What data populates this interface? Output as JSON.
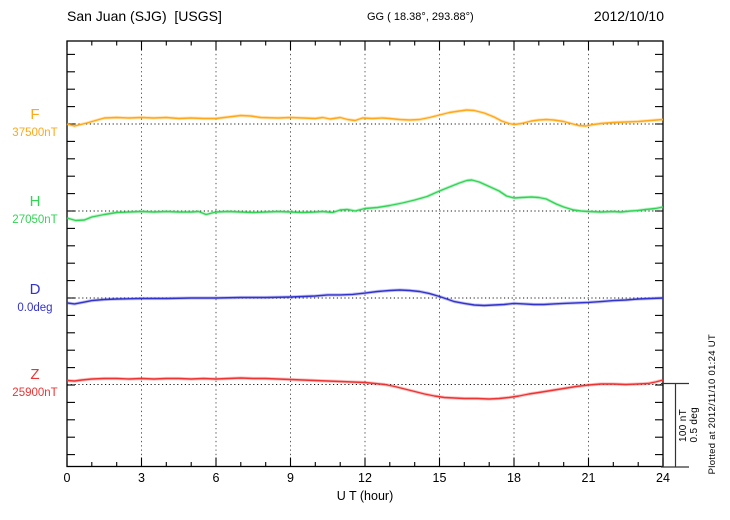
{
  "header": {
    "station": "San Juan (SJG)  [USGS]",
    "geographic": "GG ( 18.38°, 293.88°)",
    "date": "2012/10/10"
  },
  "xaxis": {
    "label": "U T (hour)",
    "tick_labels": [
      "0",
      "3",
      "6",
      "9",
      "12",
      "15",
      "18",
      "21",
      "24"
    ],
    "minor_tick_every_hours": 1,
    "major_tick_every_hours": 3
  },
  "scale_bar": {
    "nt_label": "100 nT",
    "deg_label": "0.5 deg"
  },
  "footnote": "Plotted at 2012/11/10 01:24 UT",
  "colors": {
    "axis": "#000000",
    "gridline": "#555555",
    "baseline_dots": "#1a1a1a",
    "background": "#ffffff"
  },
  "chart_data": {
    "type": "line",
    "title": "San Juan (SJG) [USGS] magnetogram, 2012/10/10",
    "xlabel": "U T (hour)",
    "xlim": [
      0,
      24
    ],
    "x_unit": "hour",
    "grid": "dotted vertical every 3 h, dotted horizontal baseline per trace",
    "legend_position": "left margin trace labels",
    "scale": {
      "nT_per_division": 100,
      "deg_per_division": 0.5
    },
    "series": [
      {
        "name": "F",
        "ref_label": "37500nT",
        "reference": 37500,
        "unit": "nT",
        "color": "#FFA819",
        "points": [
          [
            0,
            0
          ],
          [
            0.3,
            -2.4
          ],
          [
            0.8,
            1.2
          ],
          [
            1.5,
            7.1
          ],
          [
            2,
            7.6
          ],
          [
            2.5,
            7.1
          ],
          [
            3,
            7.6
          ],
          [
            3.5,
            7.1
          ],
          [
            4,
            7.6
          ],
          [
            4.5,
            6.5
          ],
          [
            5,
            7.1
          ],
          [
            5.5,
            6.5
          ],
          [
            6,
            6.5
          ],
          [
            6.5,
            8.2
          ],
          [
            7,
            10
          ],
          [
            7.4,
            9.4
          ],
          [
            7.8,
            7.6
          ],
          [
            8.5,
            7.1
          ],
          [
            9,
            7.6
          ],
          [
            9.5,
            7.1
          ],
          [
            10,
            6.5
          ],
          [
            10.3,
            7.6
          ],
          [
            10.6,
            5.9
          ],
          [
            11,
            7.6
          ],
          [
            11.3,
            5.3
          ],
          [
            11.6,
            4.1
          ],
          [
            11.9,
            7.1
          ],
          [
            12.3,
            6.5
          ],
          [
            12.7,
            7.1
          ],
          [
            13,
            6.5
          ],
          [
            13.4,
            5.3
          ],
          [
            13.8,
            4.7
          ],
          [
            14.2,
            5.3
          ],
          [
            14.6,
            7.6
          ],
          [
            15,
            10.6
          ],
          [
            15.4,
            13.5
          ],
          [
            15.8,
            15.3
          ],
          [
            16.1,
            16.5
          ],
          [
            16.4,
            15.9
          ],
          [
            16.8,
            12.9
          ],
          [
            17.2,
            8.2
          ],
          [
            17.5,
            3.5
          ],
          [
            17.8,
            0.6
          ],
          [
            18,
            -0.6
          ],
          [
            18.3,
            0.6
          ],
          [
            18.7,
            3.5
          ],
          [
            19,
            4.7
          ],
          [
            19.3,
            5.3
          ],
          [
            19.6,
            4.7
          ],
          [
            20,
            2.9
          ],
          [
            20.3,
            0.6
          ],
          [
            20.6,
            -1.8
          ],
          [
            20.9,
            -2.4
          ],
          [
            21.2,
            -0.6
          ],
          [
            21.5,
            0.6
          ],
          [
            22,
            1.8
          ],
          [
            22.5,
            2.4
          ],
          [
            23,
            2.9
          ],
          [
            23.5,
            4.1
          ],
          [
            24,
            5.3
          ]
        ]
      },
      {
        "name": "H",
        "ref_label": "27050nT",
        "reference": 27050,
        "unit": "nT",
        "color": "#33D455",
        "points": [
          [
            0,
            -8.2
          ],
          [
            0.35,
            -11.2
          ],
          [
            0.7,
            -10.6
          ],
          [
            1,
            -7.1
          ],
          [
            1.5,
            -4.1
          ],
          [
            2,
            -1.8
          ],
          [
            2.5,
            -1.2
          ],
          [
            3,
            -0.6
          ],
          [
            3.5,
            -1.2
          ],
          [
            4,
            -0.6
          ],
          [
            4.5,
            -1.2
          ],
          [
            5,
            -1.2
          ],
          [
            5.3,
            -0.6
          ],
          [
            5.6,
            -4.1
          ],
          [
            6,
            -1.2
          ],
          [
            6.5,
            -0.6
          ],
          [
            7,
            -1.2
          ],
          [
            7.5,
            -1.8
          ],
          [
            8,
            -1.2
          ],
          [
            8.5,
            -0.6
          ],
          [
            9,
            -1.2
          ],
          [
            9.5,
            -1.8
          ],
          [
            10,
            -1.2
          ],
          [
            10.3,
            -0.6
          ],
          [
            10.7,
            -1.8
          ],
          [
            11,
            1.2
          ],
          [
            11.3,
            1.8
          ],
          [
            11.6,
            0
          ],
          [
            12,
            2.9
          ],
          [
            12.5,
            4.1
          ],
          [
            13,
            6.5
          ],
          [
            13.5,
            9.4
          ],
          [
            14,
            12.9
          ],
          [
            14.5,
            17.1
          ],
          [
            15,
            23.5
          ],
          [
            15.5,
            29.4
          ],
          [
            15.8,
            32.9
          ],
          [
            16.1,
            35.9
          ],
          [
            16.3,
            36.5
          ],
          [
            16.6,
            34.1
          ],
          [
            17,
            28.8
          ],
          [
            17.4,
            23.5
          ],
          [
            17.7,
            17.6
          ],
          [
            18,
            15.3
          ],
          [
            18.3,
            15.9
          ],
          [
            18.7,
            16.5
          ],
          [
            19,
            15.9
          ],
          [
            19.3,
            14.1
          ],
          [
            19.7,
            8.2
          ],
          [
            20,
            4.7
          ],
          [
            20.4,
            1.2
          ],
          [
            20.7,
            0
          ],
          [
            21,
            -0.6
          ],
          [
            21.5,
            -1.2
          ],
          [
            22,
            -0.6
          ],
          [
            22.3,
            -1.2
          ],
          [
            22.7,
            0
          ],
          [
            23,
            0.6
          ],
          [
            23.3,
            1.8
          ],
          [
            23.7,
            2.9
          ],
          [
            24,
            4.7
          ]
        ]
      },
      {
        "name": "D",
        "ref_label": "0.0deg",
        "reference": 0.0,
        "unit": "deg",
        "color": "#3232CD",
        "points": [
          [
            0,
            -0.029
          ],
          [
            0.3,
            -0.035
          ],
          [
            0.7,
            -0.024
          ],
          [
            1,
            -0.015
          ],
          [
            1.5,
            -0.009
          ],
          [
            2,
            -0.006
          ],
          [
            3,
            -0.003
          ],
          [
            4,
            -0.003
          ],
          [
            5,
            0
          ],
          [
            6,
            0
          ],
          [
            7,
            0.003
          ],
          [
            8,
            0.003
          ],
          [
            9,
            0.006
          ],
          [
            9.5,
            0.009
          ],
          [
            10,
            0.012
          ],
          [
            10.5,
            0.018
          ],
          [
            11,
            0.018
          ],
          [
            11.5,
            0.021
          ],
          [
            12,
            0.029
          ],
          [
            12.5,
            0.038
          ],
          [
            13,
            0.044
          ],
          [
            13.4,
            0.047
          ],
          [
            13.8,
            0.044
          ],
          [
            14.2,
            0.038
          ],
          [
            14.6,
            0.026
          ],
          [
            15,
            0.009
          ],
          [
            15.3,
            -0.006
          ],
          [
            15.6,
            -0.021
          ],
          [
            16,
            -0.032
          ],
          [
            16.4,
            -0.041
          ],
          [
            16.8,
            -0.044
          ],
          [
            17.2,
            -0.041
          ],
          [
            17.6,
            -0.038
          ],
          [
            18,
            -0.032
          ],
          [
            18.4,
            -0.035
          ],
          [
            18.8,
            -0.038
          ],
          [
            19.2,
            -0.038
          ],
          [
            19.6,
            -0.035
          ],
          [
            20,
            -0.032
          ],
          [
            20.5,
            -0.029
          ],
          [
            21,
            -0.026
          ],
          [
            21.5,
            -0.021
          ],
          [
            22,
            -0.015
          ],
          [
            22.5,
            -0.012
          ],
          [
            23,
            -0.006
          ],
          [
            23.5,
            -0.003
          ],
          [
            24,
            0
          ]
        ]
      },
      {
        "name": "Z",
        "ref_label": "25900nT",
        "reference": 25900,
        "unit": "nT",
        "color": "#EE3333",
        "points": [
          [
            0,
            4.7
          ],
          [
            0.3,
            4.1
          ],
          [
            0.6,
            5.3
          ],
          [
            1,
            6.5
          ],
          [
            1.5,
            7.1
          ],
          [
            2,
            7.1
          ],
          [
            2.5,
            6.5
          ],
          [
            3,
            7.1
          ],
          [
            3.5,
            6.5
          ],
          [
            4,
            7.1
          ],
          [
            4.5,
            7.1
          ],
          [
            5,
            6.5
          ],
          [
            5.5,
            7.1
          ],
          [
            6,
            6.5
          ],
          [
            6.5,
            7.1
          ],
          [
            7,
            7.6
          ],
          [
            7.5,
            7.1
          ],
          [
            8,
            7.1
          ],
          [
            8.5,
            6.5
          ],
          [
            9,
            5.9
          ],
          [
            9.5,
            5.3
          ],
          [
            10,
            4.7
          ],
          [
            10.5,
            4.1
          ],
          [
            11,
            3.5
          ],
          [
            11.5,
            2.9
          ],
          [
            12,
            2.4
          ],
          [
            12.4,
            1.2
          ],
          [
            12.8,
            0
          ],
          [
            13.2,
            -2.4
          ],
          [
            13.6,
            -5.3
          ],
          [
            14,
            -8.2
          ],
          [
            14.4,
            -11.2
          ],
          [
            14.8,
            -13.5
          ],
          [
            15.2,
            -15.3
          ],
          [
            15.6,
            -15.9
          ],
          [
            16,
            -16.5
          ],
          [
            16.5,
            -16.5
          ],
          [
            17,
            -17.1
          ],
          [
            17.4,
            -16.5
          ],
          [
            17.8,
            -15.3
          ],
          [
            18.2,
            -13.5
          ],
          [
            18.6,
            -11.2
          ],
          [
            19,
            -9.4
          ],
          [
            19.5,
            -7.1
          ],
          [
            20,
            -4.7
          ],
          [
            20.5,
            -2.4
          ],
          [
            21,
            -0.6
          ],
          [
            21.5,
            0.6
          ],
          [
            22,
            0.6
          ],
          [
            22.5,
            0
          ],
          [
            23,
            0.6
          ],
          [
            23.4,
            1.2
          ],
          [
            23.7,
            2.9
          ],
          [
            24,
            5.3
          ]
        ]
      }
    ]
  }
}
